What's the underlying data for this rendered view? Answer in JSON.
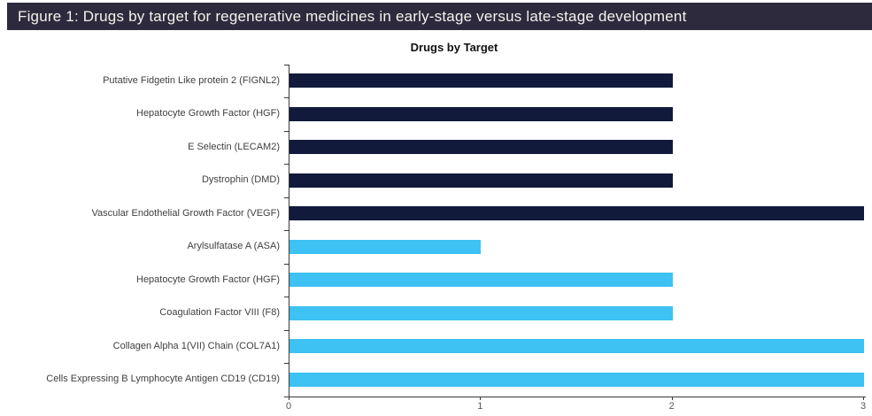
{
  "figure_caption": "Figure 1: Drugs by target for regenerative medicines in early-stage versus late-stage development",
  "colors": {
    "header_bg": "#2e2a3e",
    "header_text": "#f5f2ec",
    "dark_navy_bar": "#111a3a",
    "light_blue_bar": "#3ec1f3",
    "axis_line": "#3a3a3a",
    "tick_label_text": "#595959",
    "category_label_text": "#404040"
  },
  "chart_data": {
    "type": "bar",
    "orientation": "horizontal",
    "title": "Drugs by Target",
    "categories": [
      "Putative Fidgetin Like protein 2 (FIGNL2)",
      "Hepatocyte Growth Factor (HGF)",
      "E Selectin (LECAM2)",
      "Dystrophin (DMD)",
      "Vascular Endothelial Growth Factor (VEGF)",
      "Arylsulfatase A (ASA)",
      "Hepatocyte Growth Factor (HGF)",
      "Coagulation Factor VIII (F8)",
      "Collagen Alpha 1(VII) Chain (COL7A1)",
      "Cells Expressing B Lymphocyte Antigen CD19 (CD19)"
    ],
    "values": [
      2,
      2,
      2,
      2,
      3,
      1,
      2,
      2,
      3,
      3
    ],
    "bar_colors": [
      "#111a3a",
      "#111a3a",
      "#111a3a",
      "#111a3a",
      "#111a3a",
      "#3ec1f3",
      "#3ec1f3",
      "#3ec1f3",
      "#3ec1f3",
      "#3ec1f3"
    ],
    "xlabel": "",
    "ylabel": "",
    "x_ticks": [
      "0",
      "1",
      "2",
      "3"
    ],
    "xlim": [
      0,
      3
    ],
    "grid": false,
    "legend": "none"
  }
}
